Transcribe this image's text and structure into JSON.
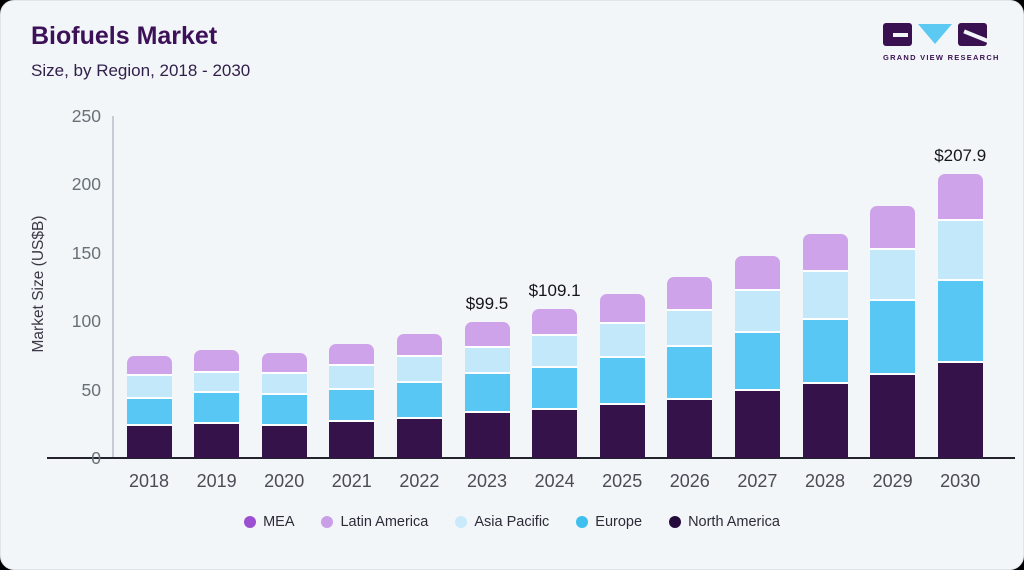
{
  "header": {
    "title": "Biofuels Market",
    "subtitle": "Size, by Region, 2018 - 2030"
  },
  "logo": {
    "brand": "GRAND VIEW RESEARCH"
  },
  "chart_data": {
    "type": "bar",
    "stacked": true,
    "title": "Biofuels Market Size, by Region, 2018 - 2030",
    "xlabel": "",
    "ylabel": "Market Size (US$B)",
    "ylim": [
      0,
      250
    ],
    "yticks": [
      0,
      50,
      100,
      150,
      200,
      250
    ],
    "grid": false,
    "legend_position": "bottom",
    "categories": [
      "2018",
      "2019",
      "2020",
      "2021",
      "2022",
      "2023",
      "2024",
      "2025",
      "2026",
      "2027",
      "2028",
      "2029",
      "2030"
    ],
    "series": [
      {
        "name": "North America",
        "color": "#36124b",
        "values": [
          24.7,
          26.1,
          24.9,
          27.4,
          29.8,
          34.2,
          36.4,
          40.2,
          43.9,
          50.5,
          55.4,
          62.2,
          71.2
        ]
      },
      {
        "name": "Europe",
        "color": "#58c7f4",
        "values": [
          19.7,
          22.7,
          22.7,
          23.8,
          26.3,
          28.7,
          30.8,
          34.7,
          38.5,
          42.2,
          47.0,
          53.7,
          59.3
        ]
      },
      {
        "name": "Asia Pacific",
        "color": "#c3e8f9",
        "values": [
          16.8,
          15.1,
          15.3,
          17.6,
          19.0,
          18.8,
          23.4,
          24.6,
          26.6,
          30.5,
          34.9,
          37.7,
          44.3
        ]
      },
      {
        "name": "Latin America",
        "color": "#cfa3ea",
        "values": [
          13.2,
          14.7,
          13.9,
          14.6,
          15.6,
          17.8,
          18.5,
          20.5,
          23.4,
          24.1,
          26.6,
          30.7,
          33.1
        ]
      },
      {
        "name": "MEA",
        "color": "#9c4fd1",
        "values": [
          0,
          0,
          0,
          0,
          0,
          0,
          0,
          0,
          0,
          0,
          0,
          0,
          0
        ]
      }
    ],
    "annotations": [
      {
        "category": "2023",
        "text": "$99.5"
      },
      {
        "category": "2024",
        "text": "$109.1"
      },
      {
        "category": "2030",
        "text": "$207.9"
      }
    ]
  },
  "legend": {
    "items": [
      {
        "label": "MEA",
        "color": "#9c4fd1"
      },
      {
        "label": "Latin America",
        "color": "#cb9fe8"
      },
      {
        "label": "Asia Pacific",
        "color": "#c9eafa"
      },
      {
        "label": "Europe",
        "color": "#3fbfee"
      },
      {
        "label": "North America",
        "color": "#250b3c"
      }
    ]
  },
  "colors": {
    "card_background": "#f2f6f9",
    "title": "#3c1157",
    "axis_line": "#23232e",
    "yaxis_line": "#c7ccd4",
    "accent_logo_dark": "#3a1150",
    "accent_logo_blue": "#5bc9f2"
  }
}
